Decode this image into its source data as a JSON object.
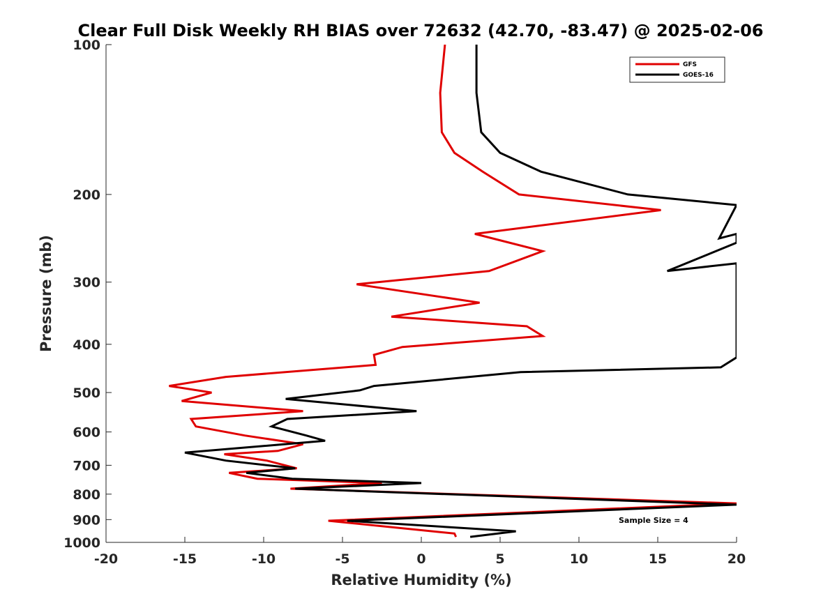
{
  "chart_data": {
    "type": "line",
    "title": "Clear Full Disk Weekly RH BIAS over 72632 (42.70, -83.47) @ 2025-02-06",
    "xlabel": "Relative Humidity (%)",
    "ylabel": "Pressure (mb)",
    "xlim": [
      -20,
      20
    ],
    "ylim": [
      100,
      1000
    ],
    "y_scale": "log",
    "y_reversed": true,
    "x_ticks": [
      "-20",
      "-15",
      "-10",
      "-5",
      "0",
      "5",
      "10",
      "15",
      "20"
    ],
    "y_ticks": [
      "100",
      "200",
      "300",
      "400",
      "500",
      "600",
      "700",
      "800",
      "900",
      "1000"
    ],
    "y_tick_values": [
      100,
      200,
      300,
      400,
      500,
      600,
      700,
      800,
      900,
      1000
    ],
    "x_tick_values": [
      -20,
      -15,
      -10,
      -5,
      0,
      5,
      10,
      15,
      20
    ],
    "legend": {
      "location": "top-right",
      "entries": [
        "GFS",
        "GOES-16"
      ]
    },
    "annotation": "Sample Size = 4",
    "series": [
      {
        "name": "GFS",
        "color": "#e00000",
        "points": [
          [
            1.5,
            100
          ],
          [
            1.2,
            125
          ],
          [
            1.3,
            150
          ],
          [
            2.1,
            165
          ],
          [
            3.9,
            180
          ],
          [
            6.2,
            200
          ],
          [
            15.2,
            215
          ],
          [
            3.4,
            240
          ],
          [
            7.7,
            260
          ],
          [
            4.3,
            285
          ],
          [
            -4.1,
            303
          ],
          [
            3.7,
            330
          ],
          [
            -1.9,
            352
          ],
          [
            6.7,
            368
          ],
          [
            7.7,
            385
          ],
          [
            -1.2,
            405
          ],
          [
            -3.0,
            420
          ],
          [
            -2.9,
            440
          ],
          [
            -12.4,
            465
          ],
          [
            -16.0,
            485
          ],
          [
            -13.3,
            500
          ],
          [
            -15.2,
            520
          ],
          [
            -7.5,
            545
          ],
          [
            -14.6,
            565
          ],
          [
            -14.3,
            585
          ],
          [
            -11.2,
            610
          ],
          [
            -7.5,
            635
          ],
          [
            -9.1,
            655
          ],
          [
            -12.5,
            665
          ],
          [
            -9.8,
            685
          ],
          [
            -7.9,
            710
          ],
          [
            -12.2,
            725
          ],
          [
            -10.4,
            745
          ],
          [
            -2.5,
            760
          ],
          [
            -8.3,
            780
          ],
          [
            20.0,
            835
          ],
          [
            -5.9,
            905
          ],
          [
            2.1,
            960
          ],
          [
            2.2,
            975
          ]
        ]
      },
      {
        "name": "GOES-16",
        "color": "#000000",
        "points": [
          [
            3.5,
            100
          ],
          [
            3.5,
            125
          ],
          [
            3.8,
            150
          ],
          [
            5.0,
            165
          ],
          [
            7.6,
            180
          ],
          [
            13.1,
            200
          ],
          [
            20.0,
            210
          ],
          [
            18.9,
            245
          ],
          [
            20.0,
            240
          ],
          [
            20.0,
            250
          ],
          [
            15.6,
            285
          ],
          [
            20.0,
            275
          ],
          [
            20.0,
            300
          ],
          [
            20.0,
            425
          ],
          [
            19.0,
            445
          ],
          [
            6.3,
            455
          ],
          [
            -3.0,
            485
          ],
          [
            -3.9,
            495
          ],
          [
            -8.6,
            515
          ],
          [
            -0.3,
            545
          ],
          [
            -8.5,
            565
          ],
          [
            -9.5,
            585
          ],
          [
            -7.3,
            610
          ],
          [
            -6.1,
            625
          ],
          [
            -15.0,
            660
          ],
          [
            -12.4,
            685
          ],
          [
            -8.0,
            710
          ],
          [
            -11.1,
            725
          ],
          [
            -8.2,
            745
          ],
          [
            0.0,
            760
          ],
          [
            -8.0,
            780
          ],
          [
            20.0,
            840
          ],
          [
            -4.7,
            905
          ],
          [
            6.0,
            950
          ],
          [
            3.1,
            975
          ]
        ]
      }
    ]
  }
}
